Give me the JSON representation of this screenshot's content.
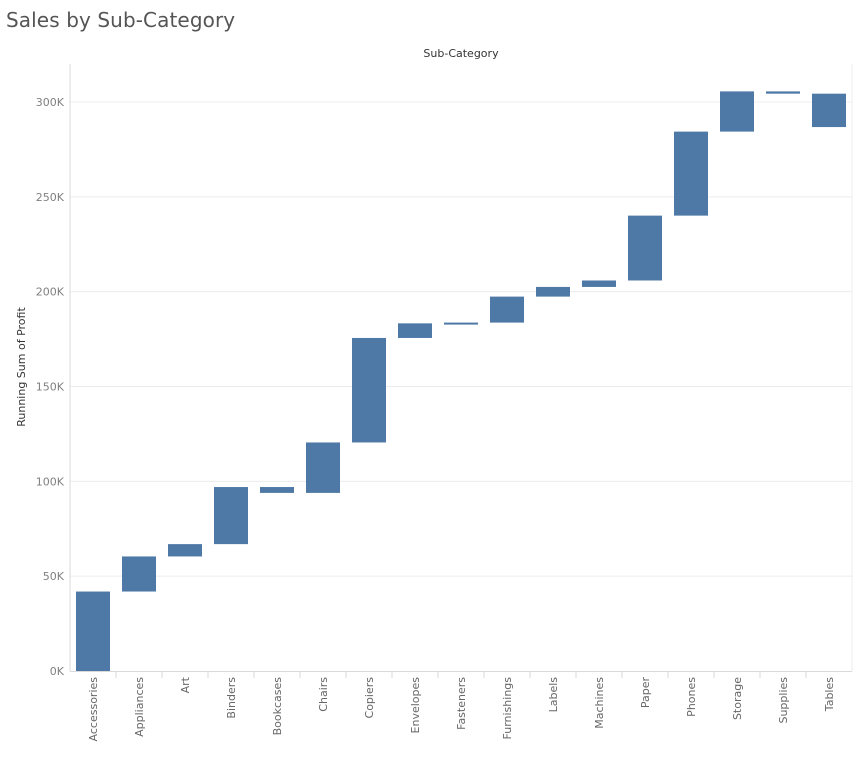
{
  "title": "Sales by Sub-Category",
  "chart_data": {
    "type": "bar",
    "subtype": "waterfall",
    "title": "Sales by Sub-Category",
    "column_header": "Sub-Category",
    "xlabel": "",
    "ylabel": "Running Sum of Profit",
    "ylim": [
      0,
      320000
    ],
    "yticks": [
      0,
      50000,
      100000,
      150000,
      200000,
      250000,
      300000
    ],
    "ytick_labels": [
      "0K",
      "50K",
      "100K",
      "150K",
      "200K",
      "250K",
      "300K"
    ],
    "grid": true,
    "bar_color": "#4e79a7",
    "categories": [
      "Accessories",
      "Appliances",
      "Art",
      "Binders",
      "Bookcases",
      "Chairs",
      "Copiers",
      "Envelopes",
      "Fasteners",
      "Furnishings",
      "Labels",
      "Machines",
      "Paper",
      "Phones",
      "Storage",
      "Supplies",
      "Tables"
    ],
    "start": [
      0,
      41900,
      60400,
      66900,
      97000,
      93900,
      120500,
      175600,
      183300,
      183700,
      197400,
      202500,
      205900,
      240100,
      284400,
      305600,
      304400
    ],
    "end": [
      41900,
      60400,
      66900,
      97000,
      93900,
      120500,
      175600,
      183300,
      183700,
      197400,
      202500,
      205900,
      240100,
      284400,
      305600,
      304400,
      286800
    ]
  }
}
